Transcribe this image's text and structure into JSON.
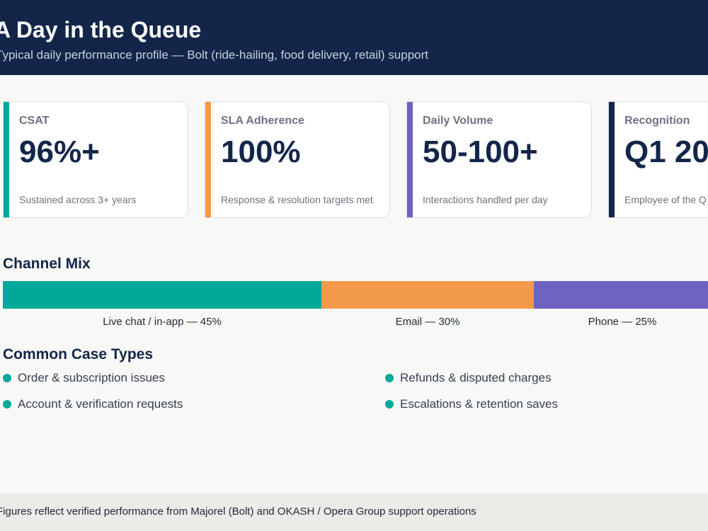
{
  "header": {
    "title": "A Day in the Queue",
    "subtitle": "Typical daily performance profile — Bolt (ride-hailing, food delivery, retail) support"
  },
  "kpis": [
    {
      "label": "CSAT",
      "value": "96%+",
      "desc": "Sustained across 3+ years",
      "color": "#00a99a"
    },
    {
      "label": "SLA Adherence",
      "value": "100%",
      "desc": "Response & resolution targets met",
      "color": "#f29a4a"
    },
    {
      "label": "Daily Volume",
      "value": "50-100+",
      "desc": "Interactions handled per day",
      "color": "#6e63c1"
    },
    {
      "label": "Recognition",
      "value": "Q1 20",
      "desc": "Employee of the Q",
      "color": "#13264a"
    }
  ],
  "channel_mix": {
    "title": "Channel Mix",
    "segments": [
      {
        "label": "Live chat / in-app — 45%",
        "share": 45,
        "color": "#00a99a"
      },
      {
        "label": "Email — 30%",
        "share": 30,
        "color": "#f29a4a"
      },
      {
        "label": "Phone — 25%",
        "share": 25,
        "color": "#6e63c1"
      }
    ]
  },
  "case_types": {
    "title": "Common Case Types",
    "items": [
      "Order & subscription issues",
      "Refunds & disputed charges",
      "Account & verification requests",
      "Escalations & retention saves"
    ],
    "bullet_color": "#00a99a"
  },
  "footer": {
    "text": "Figures reflect verified performance from Majorel (Bolt) and OKASH / Opera Group support operations"
  }
}
